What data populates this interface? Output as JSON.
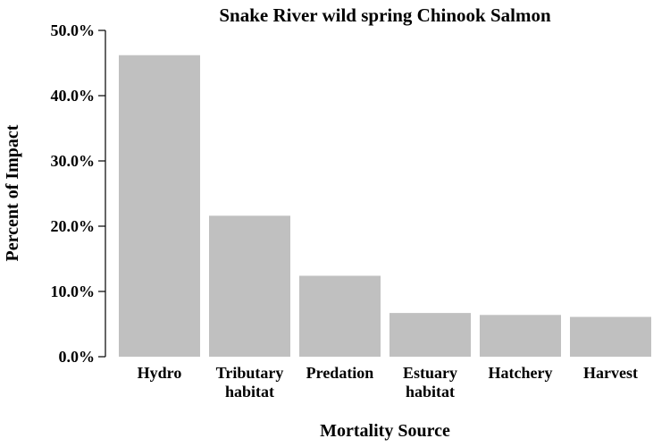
{
  "chart_data": {
    "type": "bar",
    "title": "Snake River wild spring Chinook Salmon",
    "xlabel": "Mortality Source",
    "ylabel": "Percent of Impact",
    "categories": [
      [
        "Hydro"
      ],
      [
        "Tributary",
        "habitat"
      ],
      [
        "Predation"
      ],
      [
        "Estuary",
        "habitat"
      ],
      [
        "Hatchery"
      ],
      [
        "Harvest"
      ]
    ],
    "values": [
      46.2,
      21.6,
      12.4,
      6.7,
      6.4,
      6.1
    ],
    "ylim": [
      0,
      50
    ],
    "yticks": [
      0,
      10,
      20,
      30,
      40,
      50
    ],
    "ytick_labels": [
      "0.0%",
      "10.0%",
      "20.0%",
      "30.0%",
      "40.0%",
      "50.0%"
    ],
    "grid": false,
    "colors": {
      "bar": "#c0c0c0"
    }
  }
}
